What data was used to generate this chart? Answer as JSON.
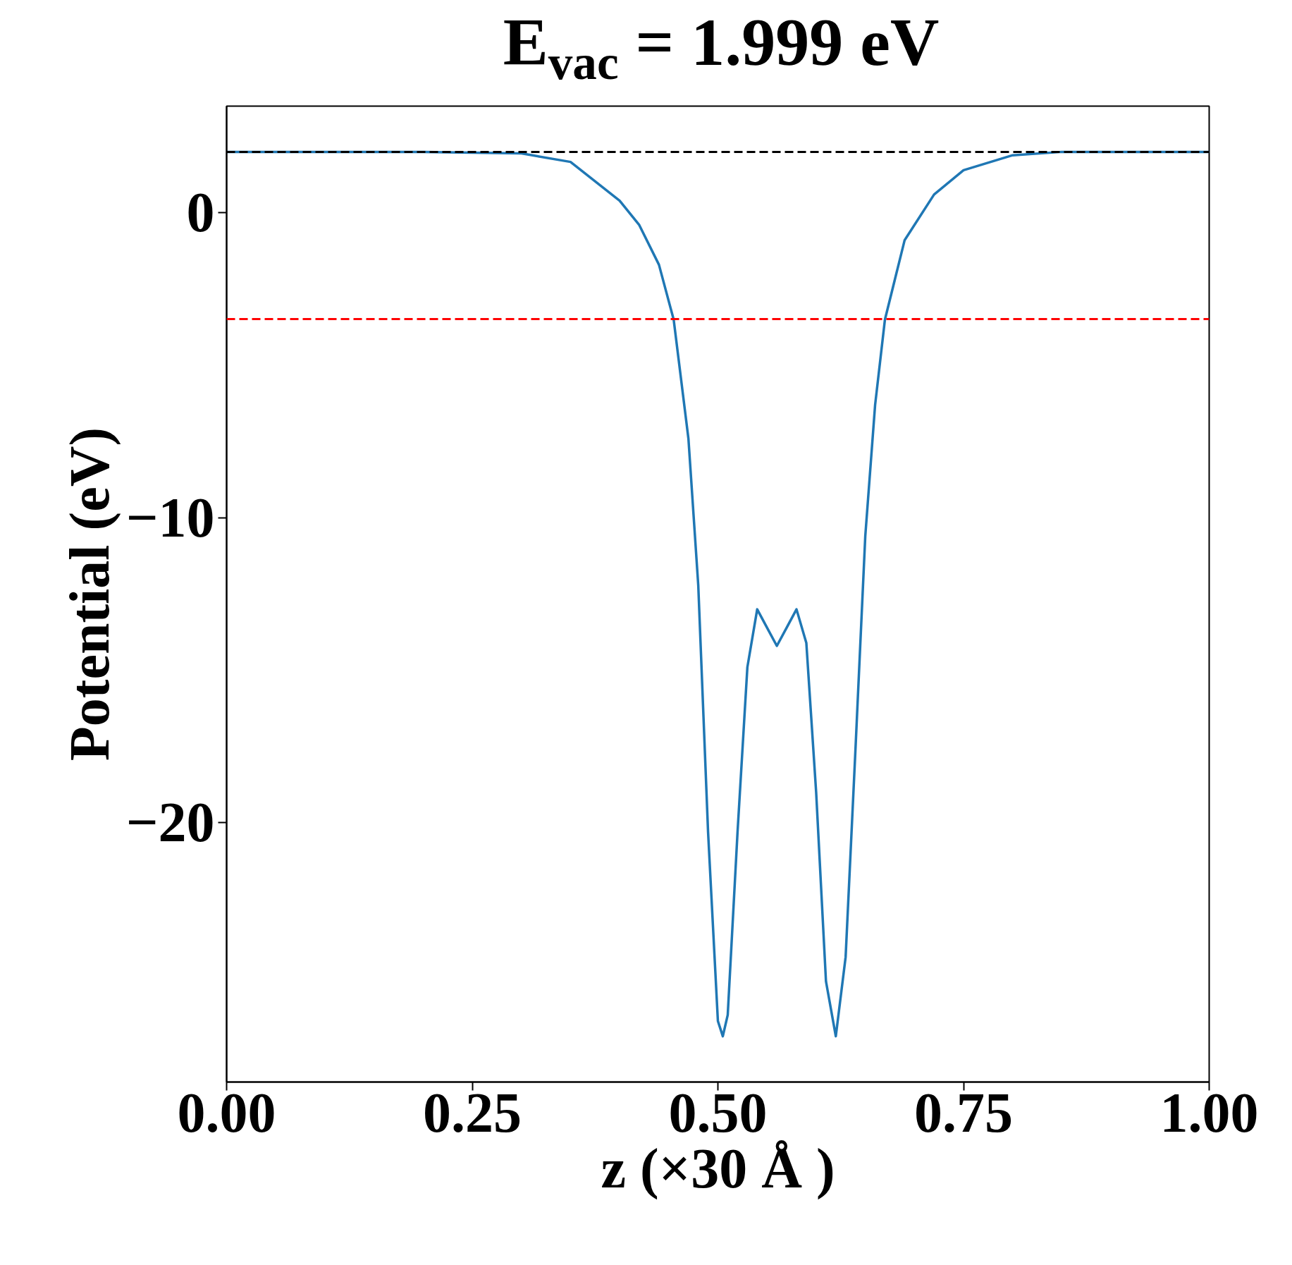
{
  "chart_data": {
    "type": "line",
    "title": "E$_{vac}$ = 1.999 eV",
    "xlabel": "z (×30 Å )",
    "ylabel": "Potential (eV)",
    "x": [
      0.0,
      0.1,
      0.2,
      0.3,
      0.35,
      0.4,
      0.42,
      0.44,
      0.455,
      0.47,
      0.48,
      0.49,
      0.5,
      0.505,
      0.51,
      0.52,
      0.53,
      0.54,
      0.55,
      0.56,
      0.57,
      0.58,
      0.59,
      0.6,
      0.61,
      0.62,
      0.63,
      0.64,
      0.65,
      0.66,
      0.67,
      0.69,
      0.72,
      0.75,
      0.8,
      0.85,
      0.9,
      1.0
    ],
    "series": [
      {
        "color": "#1f77b4",
        "values": [
          2.0,
          2.0,
          2.0,
          1.95,
          1.67,
          0.4,
          -0.4,
          -1.7,
          -3.5,
          -7.4,
          -12.2,
          -20.3,
          -26.5,
          -27.0,
          -26.3,
          -20.3,
          -14.9,
          -13.0,
          -13.6,
          -14.2,
          -13.6,
          -13.0,
          -14.1,
          -19.0,
          -25.2,
          -27.0,
          -24.4,
          -17.6,
          -10.6,
          -6.3,
          -3.5,
          -0.9,
          0.6,
          1.4,
          1.89,
          2.0,
          2.0,
          2.0
        ]
      }
    ],
    "ref_lines": [
      {
        "axis": "y",
        "value": 1.999,
        "color": "#000000",
        "line_style": "dashed"
      },
      {
        "axis": "y",
        "value": -3.48,
        "color": "#ff0000",
        "line_style": "dashed"
      }
    ],
    "xlim": [
      0,
      1
    ],
    "ylim": [
      -28.5,
      3.5
    ],
    "xticks": [
      {
        "value": 0,
        "label": "0.00"
      },
      {
        "value": 0.25,
        "label": "0.25"
      },
      {
        "value": 0.5,
        "label": "0.50"
      },
      {
        "value": 0.75,
        "label": "0.75"
      },
      {
        "value": 1,
        "label": "1.00"
      }
    ],
    "yticks": [
      {
        "value": 0,
        "label": "0"
      },
      {
        "value": -10,
        "label": "−10"
      },
      {
        "value": -20,
        "label": "−20"
      }
    ],
    "grid": false,
    "marker": "none",
    "line_style": "solid"
  }
}
